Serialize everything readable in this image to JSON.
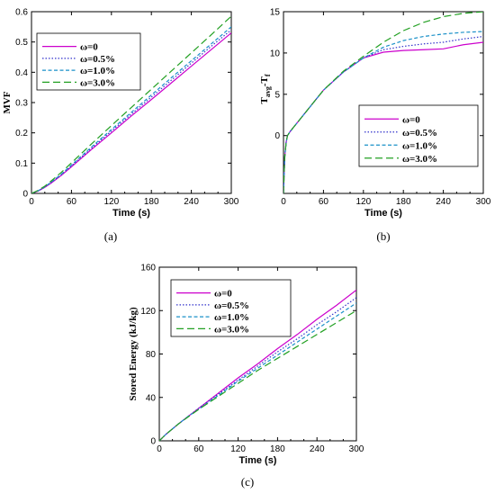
{
  "chart_data": [
    {
      "type": "line",
      "caption": "(a)",
      "xlabel": "Time (s)",
      "ylabel": "MVF",
      "xlim": [
        0,
        300
      ],
      "ylim": [
        0,
        0.6
      ],
      "xticks": [
        "0",
        "60",
        "120",
        "180",
        "240",
        "300"
      ],
      "yticks": [
        "0",
        "0.1",
        "0.2",
        "0.3",
        "0.4",
        "0.5",
        "0.6"
      ],
      "legend_position": "top-left",
      "x": [
        0,
        10,
        20,
        30,
        45,
        60,
        90,
        120,
        150,
        180,
        210,
        240,
        270,
        300
      ],
      "series": [
        {
          "name": "ω=0",
          "color": "#cc00cc",
          "dash": "solid",
          "values": [
            0,
            0.008,
            0.02,
            0.035,
            0.06,
            0.088,
            0.145,
            0.2,
            0.256,
            0.31,
            0.365,
            0.42,
            0.475,
            0.53
          ]
        },
        {
          "name": "ω=0.5%",
          "color": "#3333cc",
          "dash": "dot",
          "values": [
            0,
            0.008,
            0.021,
            0.037,
            0.062,
            0.091,
            0.149,
            0.206,
            0.262,
            0.318,
            0.374,
            0.43,
            0.486,
            0.54
          ]
        },
        {
          "name": "ω=1.0%",
          "color": "#1a90c8",
          "dash": "dash",
          "values": [
            0,
            0.009,
            0.022,
            0.038,
            0.064,
            0.094,
            0.153,
            0.211,
            0.268,
            0.325,
            0.382,
            0.438,
            0.494,
            0.55
          ]
        },
        {
          "name": "ω=3.0%",
          "color": "#22a022",
          "dash": "longdash",
          "values": [
            0,
            0.01,
            0.024,
            0.042,
            0.07,
            0.101,
            0.163,
            0.224,
            0.284,
            0.344,
            0.404,
            0.464,
            0.524,
            0.585
          ]
        }
      ]
    },
    {
      "type": "line",
      "caption": "(b)",
      "xlabel": "Time (s)",
      "ylabel_main": "T",
      "ylabel_sub1": "avg",
      "ylabel_mid": "-T",
      "ylabel_sub2": "f",
      "xlim": [
        0,
        300
      ],
      "ylim": [
        -7,
        15
      ],
      "xticks": [
        "0",
        "60",
        "120",
        "180",
        "240",
        "300"
      ],
      "yticks": [
        "0",
        "5",
        "10",
        "15"
      ],
      "legend_position": "bottom-right",
      "x": [
        0,
        1,
        2,
        4,
        6,
        10,
        15,
        20,
        30,
        45,
        60,
        90,
        120,
        150,
        180,
        210,
        240,
        270,
        300
      ],
      "series": [
        {
          "name": "ω=0",
          "color": "#cc00cc",
          "dash": "solid",
          "values": [
            -7,
            -4.5,
            -2.5,
            -0.8,
            0,
            0.5,
            1.0,
            1.5,
            2.5,
            4.0,
            5.5,
            7.7,
            9.4,
            10.1,
            10.3,
            10.4,
            10.5,
            11.0,
            11.3
          ]
        },
        {
          "name": "ω=0.5%",
          "color": "#3333cc",
          "dash": "dot",
          "values": [
            -7,
            -4.5,
            -2.5,
            -0.8,
            0,
            0.5,
            1.0,
            1.5,
            2.5,
            4.0,
            5.5,
            7.7,
            9.4,
            10.4,
            10.8,
            11.1,
            11.3,
            11.7,
            12.0
          ]
        },
        {
          "name": "ω=1.0%",
          "color": "#1a90c8",
          "dash": "dash",
          "values": [
            -7,
            -4.5,
            -2.5,
            -0.8,
            0,
            0.5,
            1.0,
            1.5,
            2.5,
            4.0,
            5.5,
            7.7,
            9.4,
            10.7,
            11.5,
            12.0,
            12.3,
            12.5,
            12.6
          ]
        },
        {
          "name": "ω=3.0%",
          "color": "#22a022",
          "dash": "longdash",
          "values": [
            -7,
            -4.5,
            -2.5,
            -0.8,
            0,
            0.5,
            1.0,
            1.5,
            2.5,
            4.0,
            5.5,
            7.8,
            9.6,
            11.3,
            12.7,
            13.7,
            14.4,
            14.8,
            15.0
          ]
        }
      ]
    },
    {
      "type": "line",
      "caption": "(c)",
      "xlabel": "Time (s)",
      "ylabel": "Stored Energy (kJ/kg)",
      "xlim": [
        0,
        300
      ],
      "ylim": [
        0,
        160
      ],
      "xticks": [
        "0",
        "60",
        "120",
        "180",
        "240",
        "300"
      ],
      "yticks": [
        "0",
        "40",
        "80",
        "120",
        "160"
      ],
      "legend_position": "top-left",
      "x": [
        0,
        10,
        20,
        30,
        45,
        60,
        90,
        120,
        150,
        180,
        210,
        240,
        270,
        300
      ],
      "series": [
        {
          "name": "ω=0",
          "color": "#cc00cc",
          "dash": "solid",
          "values": [
            0,
            6,
            11,
            16,
            23,
            30,
            44,
            58,
            71,
            85,
            98,
            112,
            125,
            139
          ]
        },
        {
          "name": "ω=0.5%",
          "color": "#3333cc",
          "dash": "dot",
          "values": [
            0,
            6,
            11,
            16,
            23,
            30,
            43,
            56,
            69,
            82,
            94,
            107,
            119,
            132
          ]
        },
        {
          "name": "ω=1.0%",
          "color": "#1a90c8",
          "dash": "dash",
          "values": [
            0,
            6,
            11,
            16,
            23,
            29,
            42,
            55,
            67,
            79,
            91,
            103,
            115,
            127
          ]
        },
        {
          "name": "ω=3.0%",
          "color": "#22a022",
          "dash": "longdash",
          "values": [
            0,
            6,
            11,
            16,
            22.5,
            29,
            41,
            53,
            65,
            76,
            87,
            98,
            109,
            120
          ]
        }
      ]
    }
  ]
}
